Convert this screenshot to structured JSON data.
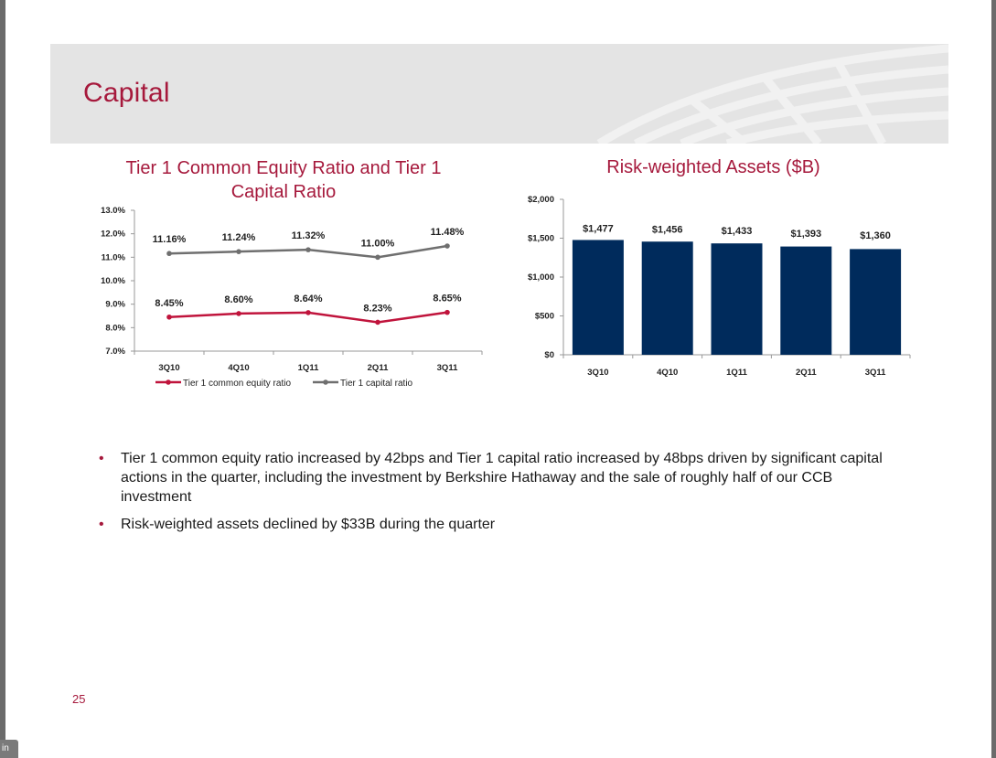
{
  "slide": {
    "title": "Capital",
    "page_number": "25",
    "corner_tab": "in",
    "colors": {
      "accent": "#a6193c",
      "header_band": "#e4e4e4",
      "bar": "#002b5c",
      "series_common": "#c0143c",
      "series_tier1": "#6f6f6f"
    }
  },
  "chart_data": [
    {
      "type": "line",
      "title": "Tier 1 Common Equity Ratio and Tier 1 Capital Ratio",
      "categories": [
        "3Q10",
        "4Q10",
        "1Q11",
        "2Q11",
        "3Q11"
      ],
      "series": [
        {
          "name": "Tier 1 common equity ratio",
          "values": [
            8.45,
            8.6,
            8.64,
            8.23,
            8.65
          ],
          "labels": [
            "8.45%",
            "8.60%",
            "8.64%",
            "8.23%",
            "8.65%"
          ],
          "color": "#c0143c"
        },
        {
          "name": "Tier 1 capital ratio",
          "values": [
            11.16,
            11.24,
            11.32,
            11.0,
            11.48
          ],
          "labels": [
            "11.16%",
            "11.24%",
            "11.32%",
            "11.00%",
            "11.48%"
          ],
          "color": "#6f6f6f"
        }
      ],
      "ylim": [
        7.0,
        13.0
      ],
      "yticks": [
        "7.0%",
        "8.0%",
        "9.0%",
        "10.0%",
        "11.0%",
        "12.0%",
        "13.0%"
      ],
      "legend": "bottom",
      "grid": false
    },
    {
      "type": "bar",
      "title": "Risk-weighted Assets ($B)",
      "categories": [
        "3Q10",
        "4Q10",
        "1Q11",
        "2Q11",
        "3Q11"
      ],
      "values": [
        1477,
        1456,
        1433,
        1393,
        1360
      ],
      "labels": [
        "$1,477",
        "$1,456",
        "$1,433",
        "$1,393",
        "$1,360"
      ],
      "ylim": [
        0,
        2000
      ],
      "yticks": [
        "$0",
        "$500",
        "$1,000",
        "$1,500",
        "$2,000"
      ],
      "color": "#002b5c",
      "grid": false
    }
  ],
  "bullets": [
    "Tier 1 common equity ratio increased by 42bps and Tier 1 capital ratio increased by 48bps driven by significant capital actions in the quarter, including the investment by Berkshire Hathaway and the sale of roughly half of our CCB investment",
    "Risk-weighted assets declined by $33B during the quarter"
  ]
}
